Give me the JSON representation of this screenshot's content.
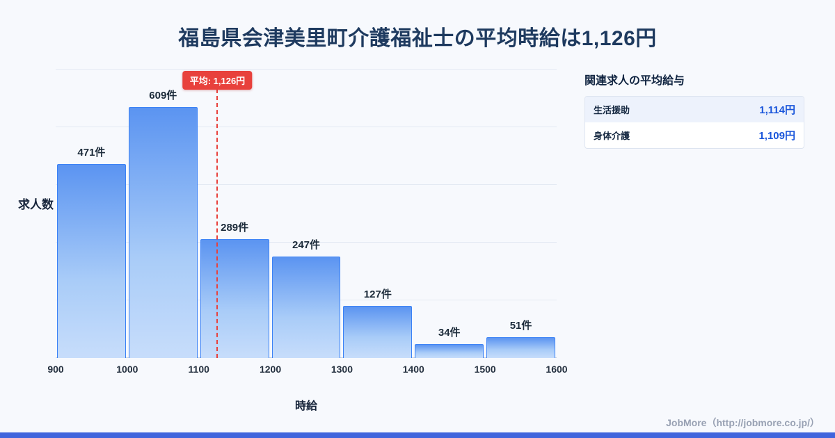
{
  "page": {
    "title": "福島県会津美里町介護福祉士の平均時給は1,126円",
    "footer": "JobMore（http://jobmore.co.jp/）"
  },
  "colors": {
    "background": "#f7f9fd",
    "title_text": "#1e3a5f",
    "bar_fill_top": "#5b94f1",
    "bar_fill_bottom": "#c7ddfb",
    "bar_border": "#3b82f6",
    "average_line": "#e8413c",
    "panel_value_text": "#1a56db",
    "panel_row_alt_bg": "#edf2fc",
    "bottom_strip": "#4065dd"
  },
  "chart_data": {
    "type": "bar",
    "title": "福島県会津美里町介護福祉士の平均時給は1,126円",
    "xlabel": "時給",
    "ylabel": "求人数",
    "xlim": [
      900,
      1600
    ],
    "ylim": [
      0,
      700
    ],
    "grid": true,
    "bin_width": 100,
    "x_tick_labels": [
      "900",
      "1000",
      "1100",
      "1200",
      "1300",
      "1400",
      "1500",
      "1600"
    ],
    "bins": [
      {
        "range_start": 900,
        "range_end": 1000,
        "count": 471,
        "label": "471件"
      },
      {
        "range_start": 1000,
        "range_end": 1100,
        "count": 609,
        "label": "609件"
      },
      {
        "range_start": 1100,
        "range_end": 1200,
        "count": 289,
        "label": "289件"
      },
      {
        "range_start": 1200,
        "range_end": 1300,
        "count": 247,
        "label": "247件"
      },
      {
        "range_start": 1300,
        "range_end": 1400,
        "count": 127,
        "label": "127件"
      },
      {
        "range_start": 1400,
        "range_end": 1500,
        "count": 34,
        "label": "34件"
      },
      {
        "range_start": 1500,
        "range_end": 1600,
        "count": 51,
        "label": "51件"
      }
    ],
    "average": {
      "value": 1126,
      "label": "平均: 1,126円"
    }
  },
  "side_panel": {
    "heading": "関連求人の平均給与",
    "rows": [
      {
        "label": "生活援助",
        "value": "1,114円"
      },
      {
        "label": "身体介護",
        "value": "1,109円"
      }
    ]
  }
}
